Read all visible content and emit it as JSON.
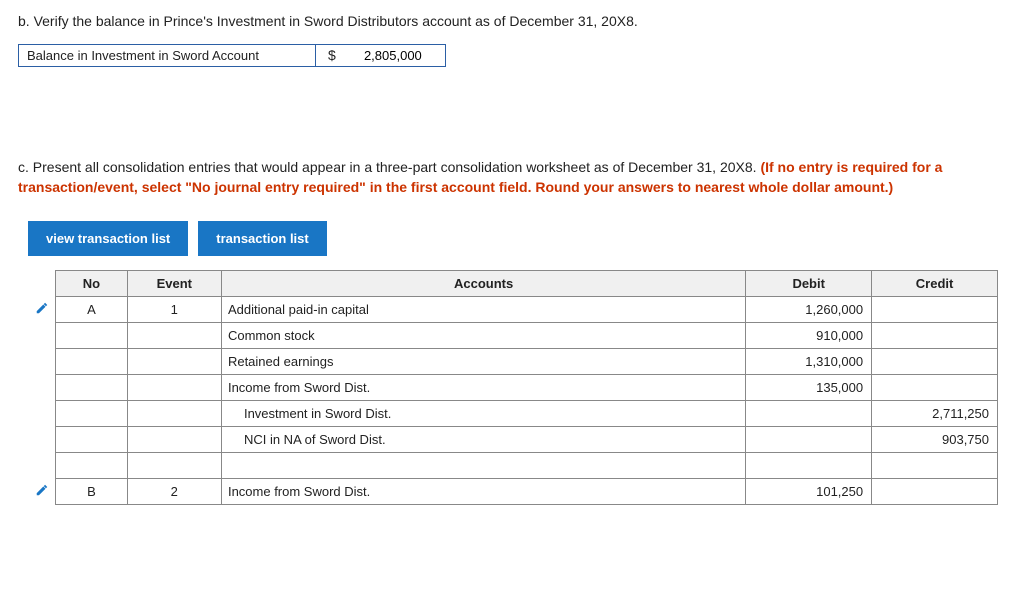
{
  "partB": {
    "prompt": "b. Verify the balance in Prince's Investment in Sword Distributors account as of December 31, 20X8.",
    "label": "Balance in Investment in Sword Account",
    "currency": "$",
    "value": "2,805,000"
  },
  "partC": {
    "prompt_plain": "c. Present all consolidation entries that would appear in a three-part consolidation worksheet as of December 31, 20X8. ",
    "prompt_red": "(If no entry is required for a transaction/event, select \"No journal entry required\" in the first account field. Round your answers to nearest whole dollar amount.)"
  },
  "tabs": {
    "view": "view transaction list",
    "list": "transaction list"
  },
  "table": {
    "headers": {
      "no": "No",
      "event": "Event",
      "accounts": "Accounts",
      "debit": "Debit",
      "credit": "Credit"
    },
    "rows": [
      {
        "edit": true,
        "no": "A",
        "event": "1",
        "account": "Additional paid-in capital",
        "indent": 0,
        "debit": "1,260,000",
        "credit": ""
      },
      {
        "edit": false,
        "no": "",
        "event": "",
        "account": "Common stock",
        "indent": 0,
        "debit": "910,000",
        "credit": ""
      },
      {
        "edit": false,
        "no": "",
        "event": "",
        "account": "Retained earnings",
        "indent": 0,
        "debit": "1,310,000",
        "credit": ""
      },
      {
        "edit": false,
        "no": "",
        "event": "",
        "account": "Income from Sword Dist.",
        "indent": 0,
        "debit": "135,000",
        "credit": ""
      },
      {
        "edit": false,
        "no": "",
        "event": "",
        "account": "Investment in Sword Dist.",
        "indent": 1,
        "debit": "",
        "credit": "2,711,250"
      },
      {
        "edit": false,
        "no": "",
        "event": "",
        "account": "NCI in NA of Sword Dist.",
        "indent": 1,
        "debit": "",
        "credit": "903,750"
      },
      {
        "edit": false,
        "no": "",
        "event": "",
        "account": "",
        "indent": 0,
        "debit": "",
        "credit": ""
      },
      {
        "edit": true,
        "no": "B",
        "event": "2",
        "account": "Income from Sword Dist.",
        "indent": 0,
        "debit": "101,250",
        "credit": ""
      }
    ]
  },
  "icons": {
    "pencil": "pencil-icon"
  },
  "colors": {
    "tab_bg": "#1976c5",
    "border_blue": "#2b5fa5",
    "red": "#c30",
    "grid": "#888"
  }
}
